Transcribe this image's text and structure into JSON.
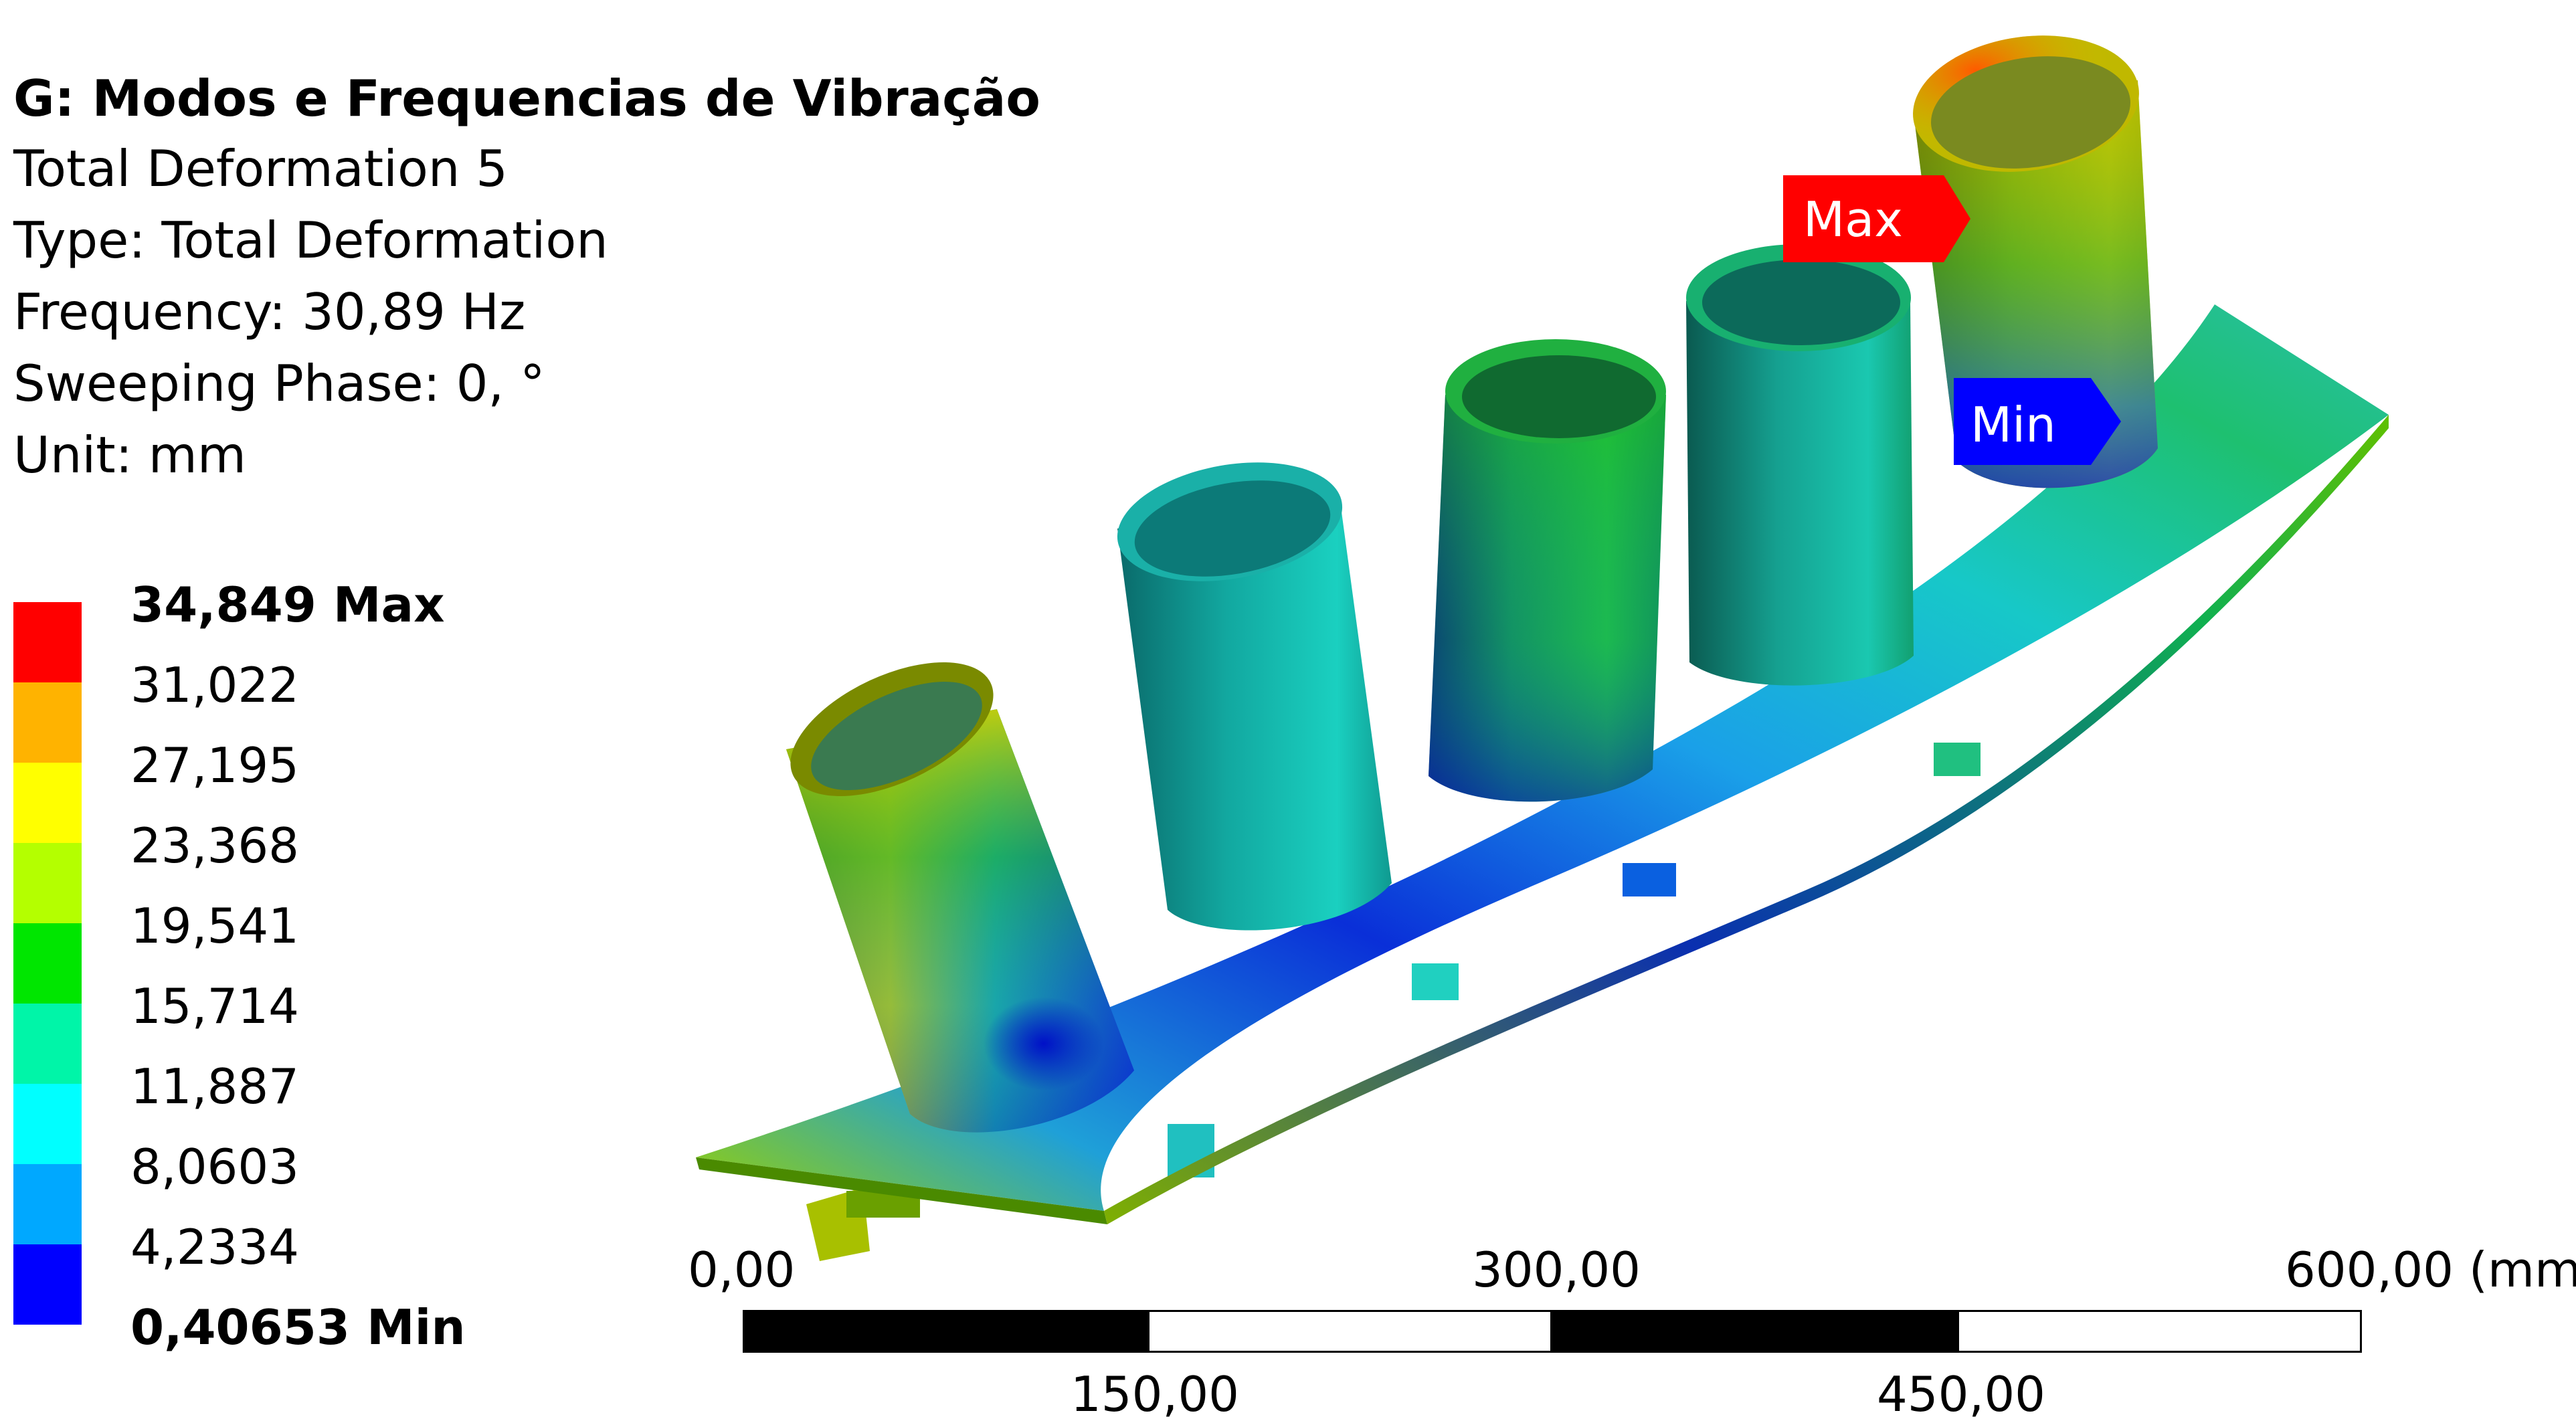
{
  "info": {
    "title": "G: Modos e Frequencias de Vibração",
    "lines": [
      "Total Deformation 5",
      "Type: Total Deformation",
      "Frequency: 30,89 Hz",
      "Sweeping Phase: 0, °",
      "Unit: mm"
    ]
  },
  "legend": {
    "labels": [
      "34,849 Max",
      "31,022",
      "27,195",
      "23,368",
      "19,541",
      "15,714",
      "11,887",
      "8,0603",
      "4,2334",
      "0,40653 Min"
    ],
    "colors": [
      "#ff0000",
      "#ffb300",
      "#ffff00",
      "#b4ff00",
      "#00e600",
      "#00f5a8",
      "#00ffff",
      "#00a8ff",
      "#0000ff"
    ]
  },
  "probes": {
    "max_label": "Max",
    "min_label": "Min",
    "max_color": "#ff0000",
    "min_color": "#0000ff"
  },
  "scale": {
    "top_labels": [
      "0,00",
      "300,00",
      "600,00 (mm)"
    ],
    "bottom_labels": [
      "150,00",
      "450,00"
    ]
  }
}
